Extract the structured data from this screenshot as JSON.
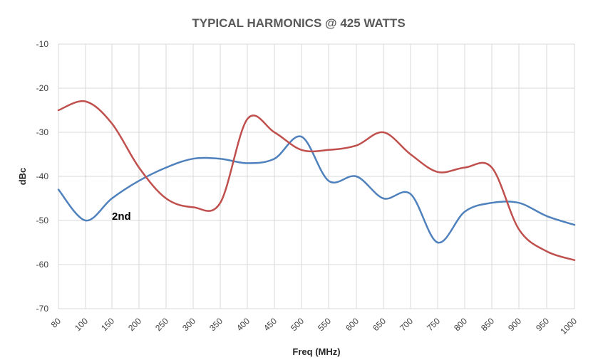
{
  "chart_data": {
    "type": "line",
    "title": "TYPICAL HARMONICS @ 425 WATTS",
    "xlabel": "Freq (MHz)",
    "ylabel": "dBc",
    "xlim": [
      80,
      1000
    ],
    "ylim": [
      -70,
      -10
    ],
    "x_ticks": [
      "80",
      "100",
      "150",
      "200",
      "250",
      "300",
      "350",
      "400",
      "450",
      "500",
      "550",
      "600",
      "650",
      "700",
      "750",
      "800",
      "850",
      "900",
      "950",
      "1000"
    ],
    "y_ticks": [
      "-10",
      "-20",
      "-30",
      "-40",
      "-50",
      "-60",
      "-70"
    ],
    "grid": true,
    "annotations": [
      {
        "text": "2nd",
        "x": 150,
        "y": -49
      }
    ],
    "series": [
      {
        "color": "#4f81bd",
        "x": [
          80,
          100,
          150,
          200,
          250,
          300,
          350,
          400,
          450,
          500,
          550,
          600,
          650,
          700,
          750,
          800,
          850,
          900,
          950,
          1000
        ],
        "y": [
          -43,
          -50,
          -45,
          -41,
          -38,
          -36,
          -36,
          -37,
          -36,
          -31,
          -41,
          -40,
          -45,
          -44,
          -55,
          -48,
          -46,
          -46,
          -49,
          -51
        ]
      },
      {
        "color": "#c0504d",
        "x": [
          80,
          100,
          150,
          200,
          250,
          300,
          350,
          400,
          450,
          500,
          550,
          600,
          650,
          700,
          750,
          800,
          850,
          900,
          950,
          1000
        ],
        "y": [
          -25,
          -23,
          -28,
          -38,
          -45,
          -47,
          -46,
          -27,
          -30,
          -34,
          -34,
          -33,
          -30,
          -35,
          -39,
          -38,
          -38,
          -52,
          -57,
          -59
        ]
      }
    ]
  }
}
